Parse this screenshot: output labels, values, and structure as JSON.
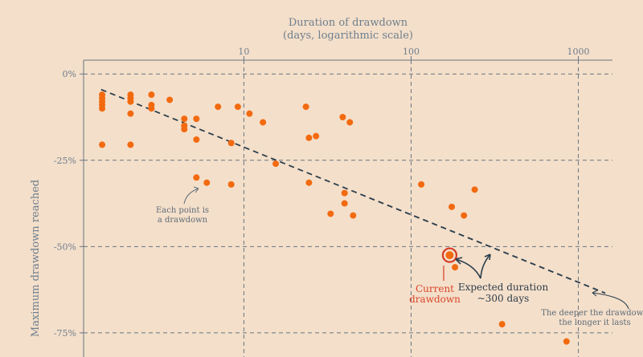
{
  "colors": {
    "background": "#f4dfca",
    "point": "#f26a10",
    "grid": "#687580",
    "trend": "#2a3d4c",
    "current": "#d63a24",
    "text": "#6e7f8e"
  },
  "chart_data": {
    "type": "scatter",
    "title": "",
    "xlabel": "Duration of drawdown",
    "xlabel_sub": "(days, logarithmic scale)",
    "ylabel": "Maximum drawdown reached",
    "x_scale": "log",
    "xlim": [
      1.1,
      1600
    ],
    "ylim": [
      -0.82,
      0.04
    ],
    "x_ticks": [
      {
        "value": 10,
        "label": "10"
      },
      {
        "value": 100,
        "label": "100"
      },
      {
        "value": 1000,
        "label": "1000"
      }
    ],
    "y_ticks": [
      {
        "value": 0,
        "label": "0%"
      },
      {
        "value": -0.25,
        "label": "-25%"
      },
      {
        "value": -0.5,
        "label": "-50%"
      },
      {
        "value": -0.75,
        "label": "-75%"
      }
    ],
    "grid": true,
    "points": [
      [
        1.42,
        -0.06
      ],
      [
        1.42,
        -0.07
      ],
      [
        1.42,
        -0.08
      ],
      [
        1.42,
        -0.09
      ],
      [
        1.42,
        -0.1
      ],
      [
        1.42,
        -0.205
      ],
      [
        2.1,
        -0.06
      ],
      [
        2.1,
        -0.07
      ],
      [
        2.1,
        -0.08
      ],
      [
        2.1,
        -0.115
      ],
      [
        2.1,
        -0.205
      ],
      [
        2.8,
        -0.06
      ],
      [
        2.8,
        -0.09
      ],
      [
        2.8,
        -0.1
      ],
      [
        3.6,
        -0.075
      ],
      [
        4.4,
        -0.13
      ],
      [
        4.4,
        -0.15
      ],
      [
        4.4,
        -0.16
      ],
      [
        5.2,
        -0.13
      ],
      [
        5.2,
        -0.19
      ],
      [
        5.2,
        -0.3
      ],
      [
        6.0,
        -0.315
      ],
      [
        7.0,
        -0.095
      ],
      [
        8.4,
        -0.2
      ],
      [
        8.4,
        -0.32
      ],
      [
        9.2,
        -0.095
      ],
      [
        10.8,
        -0.115
      ],
      [
        13.0,
        -0.14
      ],
      [
        15.5,
        -0.26
      ],
      [
        23.5,
        -0.095
      ],
      [
        24.5,
        -0.185
      ],
      [
        24.5,
        -0.315
      ],
      [
        27.0,
        -0.18
      ],
      [
        33.0,
        -0.405
      ],
      [
        39.0,
        -0.125
      ],
      [
        40.0,
        -0.345
      ],
      [
        40.0,
        -0.375
      ],
      [
        43.0,
        -0.14
      ],
      [
        45.0,
        -0.41
      ],
      [
        115,
        -0.32
      ],
      [
        175,
        -0.385
      ],
      [
        183,
        -0.56
      ],
      [
        207,
        -0.41
      ],
      [
        240,
        -0.335
      ],
      [
        350,
        -0.725
      ],
      [
        850,
        -0.775
      ]
    ],
    "current": {
      "x": 170,
      "y": -0.525
    },
    "trend": {
      "from": [
        1.4,
        -0.045
      ],
      "to": [
        1450,
        -0.635
      ]
    }
  },
  "annotations": {
    "each_point": [
      "Each point is",
      "a drawdown"
    ],
    "current": [
      "Current",
      "drawdown"
    ],
    "expected": [
      "Expected duration",
      "~300 days"
    ],
    "deeper": [
      "The deeper the drawdown",
      "the longer it lasts"
    ]
  }
}
